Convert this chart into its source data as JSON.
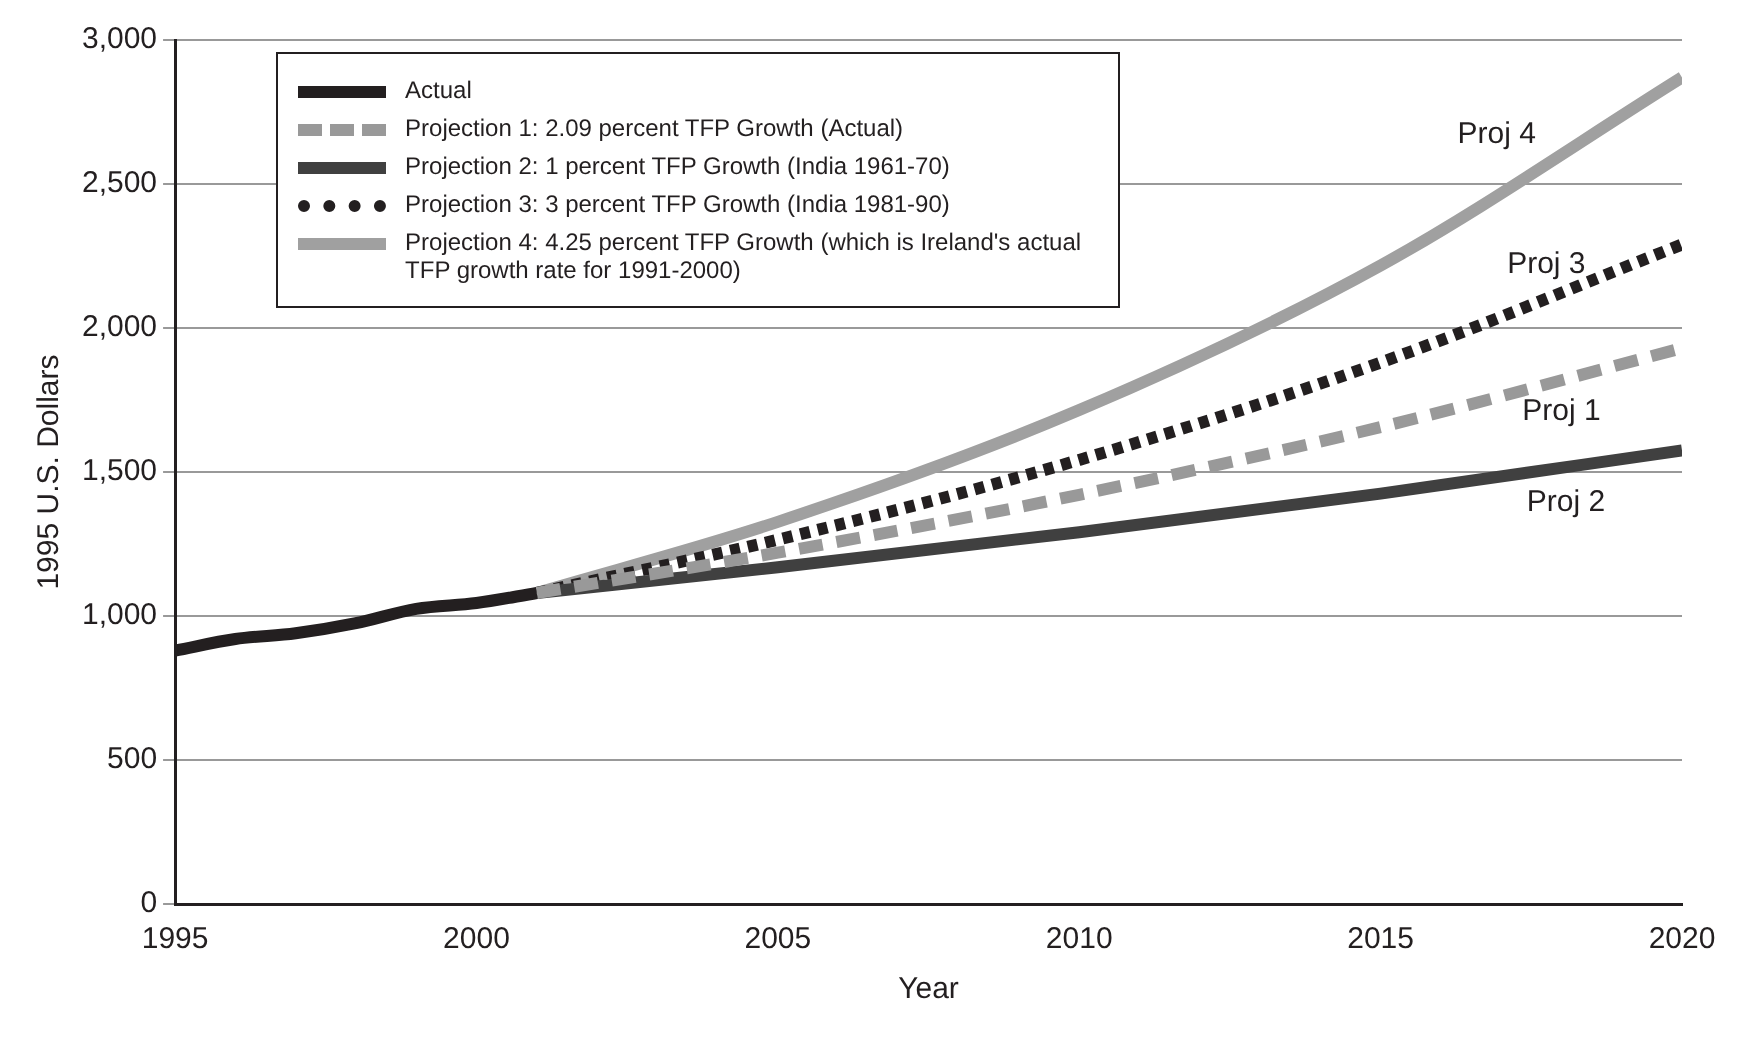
{
  "chart_data": {
    "type": "line",
    "xlabel": "Year",
    "ylabel": "1995 U.S. Dollars",
    "xlim": [
      1995,
      2020
    ],
    "xticks": [
      1995,
      2000,
      2005,
      2010,
      2015,
      2020
    ],
    "ylim": [
      0,
      3000
    ],
    "yticks": [
      {
        "value": 0,
        "label": "0"
      },
      {
        "value": 500,
        "label": "500"
      },
      {
        "value": 1000,
        "label": "1,000"
      },
      {
        "value": 1500,
        "label": "1,500"
      },
      {
        "value": 2000,
        "label": "2,000"
      },
      {
        "value": 2500,
        "label": "2,500"
      },
      {
        "value": 3000,
        "label": "3,000"
      }
    ],
    "grid": "y",
    "legend": "top left",
    "marker": "none",
    "series": [
      {
        "name": "Actual",
        "color": "#231f20",
        "line_style": "solid",
        "x": [
          1995,
          1996,
          1997,
          1998,
          1999,
          2000,
          2001
        ],
        "values": [
          880,
          920,
          940,
          975,
          1025,
          1045,
          1080
        ]
      },
      {
        "name": "Projection 1:  2.09 percent TFP Growth (Actual)",
        "color": "#999999",
        "line_style": "dashed",
        "x": [
          2001,
          2005,
          2010,
          2015,
          2020
        ],
        "values": [
          1080,
          1220,
          1421,
          1656,
          1930
        ]
      },
      {
        "name": "Projection 2:  1 percent TFP Growth (India 1961-70)",
        "color": "#404040",
        "line_style": "solid",
        "x": [
          2001,
          2005,
          2010,
          2015,
          2020
        ],
        "values": [
          1080,
          1169,
          1291,
          1425,
          1575
        ]
      },
      {
        "name": "Projection 3:  3 percent TFP Growth (India 1981-90)",
        "color": "#231f20",
        "line_style": "dotted",
        "x": [
          2001,
          2005,
          2010,
          2015,
          2020
        ],
        "values": [
          1080,
          1265,
          1542,
          1880,
          2290
        ]
      },
      {
        "name": "Projection 4:  4.25 percent TFP Growth (which is Ireland's actual TFP growth rate for 1991-2000)",
        "color": "#a0a0a0",
        "line_style": "solid",
        "x": [
          2001,
          2005,
          2010,
          2015,
          2020
        ],
        "values": [
          1080,
          1327,
          1715,
          2217,
          2870
        ]
      }
    ],
    "annotations": [
      "Proj 4",
      "Proj 3",
      "Proj 1",
      "Proj 2"
    ]
  }
}
